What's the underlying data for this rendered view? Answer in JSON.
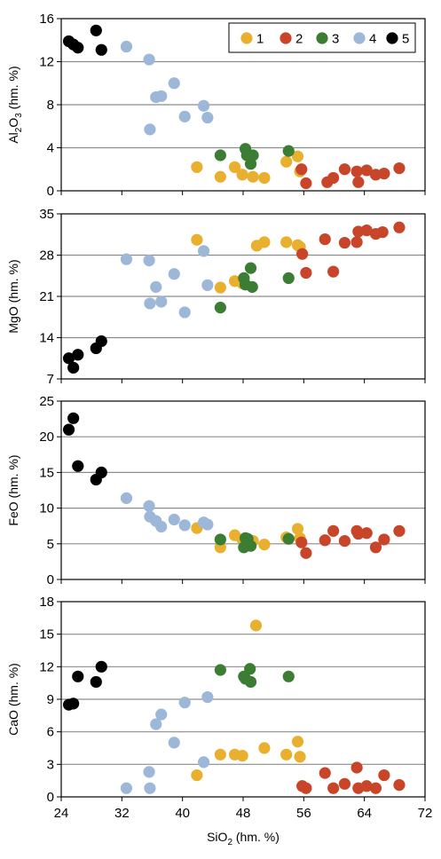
{
  "chart_data": {
    "type": "scatter",
    "legend": {
      "position": "top-right",
      "entries": [
        {
          "label": "1",
          "color": "#E8B02E"
        },
        {
          "label": "2",
          "color": "#C8452A"
        },
        {
          "label": "3",
          "color": "#3A7D33"
        },
        {
          "label": "4",
          "color": "#9DB7D8"
        },
        {
          "label": "5",
          "color": "#000000"
        }
      ]
    },
    "xaxis": {
      "label_pre": "SiO",
      "label_sub": "2",
      "label_post": " (hm. %)",
      "range": [
        24,
        72
      ],
      "ticks": [
        "24",
        "32",
        "40",
        "48",
        "56",
        "64",
        "72"
      ]
    },
    "panels": [
      {
        "ylabel_pre": "Al",
        "ylabel_sub1": "2",
        "ylabel_mid": "O",
        "ylabel_sub2": "3",
        "ylabel_post": " (hm. %)",
        "yrange": [
          0,
          16
        ],
        "yticks": [
          "0",
          "4",
          "8",
          "12",
          "16"
        ],
        "series": [
          {
            "name": "1",
            "points": [
              [
                41.9,
                2.2
              ],
              [
                45,
                1.3
              ],
              [
                46.9,
                2.2
              ],
              [
                47.9,
                1.5
              ],
              [
                49.3,
                1.3
              ],
              [
                50.8,
                1.2
              ],
              [
                53.7,
                2.7
              ],
              [
                55.2,
                3.2
              ],
              [
                55.5,
                1.8
              ]
            ]
          },
          {
            "name": "2",
            "points": [
              [
                55.7,
                2.0
              ],
              [
                56.3,
                0.7
              ],
              [
                59.1,
                0.8
              ],
              [
                59.9,
                1.2
              ],
              [
                61.4,
                2.0
              ],
              [
                63,
                1.8
              ],
              [
                63.2,
                0.8
              ],
              [
                64.3,
                1.9
              ],
              [
                65.5,
                1.5
              ],
              [
                66.6,
                1.6
              ],
              [
                68.6,
                2.1
              ]
            ]
          },
          {
            "name": "3",
            "points": [
              [
                45,
                3.3
              ],
              [
                48.3,
                3.9
              ],
              [
                48.5,
                3.3
              ],
              [
                49,
                2.5
              ],
              [
                49.3,
                3.3
              ],
              [
                54,
                3.7
              ]
            ]
          },
          {
            "name": "4",
            "points": [
              [
                32.6,
                13.4
              ],
              [
                35.6,
                12.2
              ],
              [
                35.7,
                5.7
              ],
              [
                36.5,
                8.7
              ],
              [
                37.2,
                8.8
              ],
              [
                38.9,
                10.0
              ],
              [
                40.3,
                6.9
              ],
              [
                42.8,
                7.9
              ],
              [
                43.3,
                6.8
              ]
            ]
          },
          {
            "name": "5",
            "points": [
              [
                25,
                13.9
              ],
              [
                25.6,
                13.6
              ],
              [
                26.2,
                13.3
              ],
              [
                28.6,
                14.9
              ],
              [
                29.3,
                13.1
              ]
            ]
          }
        ]
      },
      {
        "ylabel": "MgO (hm. %)",
        "yrange": [
          7,
          35
        ],
        "yticks": [
          "7",
          "14",
          "21",
          "28",
          "35"
        ],
        "series": [
          {
            "name": "1",
            "points": [
              [
                41.9,
                30.6
              ],
              [
                45,
                22.5
              ],
              [
                46.9,
                23.6
              ],
              [
                47.9,
                23.2
              ],
              [
                49.8,
                29.6
              ],
              [
                50.8,
                30.2
              ],
              [
                53.7,
                30.2
              ],
              [
                55.2,
                29.7
              ],
              [
                55.5,
                29.4
              ]
            ]
          },
          {
            "name": "2",
            "points": [
              [
                55.8,
                28.2
              ],
              [
                56.3,
                25.0
              ],
              [
                58.8,
                30.7
              ],
              [
                59.9,
                25.2
              ],
              [
                61.4,
                30.1
              ],
              [
                63,
                30.2
              ],
              [
                63.2,
                32.0
              ],
              [
                64.3,
                32.2
              ],
              [
                65.5,
                31.6
              ],
              [
                66.4,
                31.9
              ],
              [
                68.6,
                32.7
              ]
            ]
          },
          {
            "name": "3",
            "points": [
              [
                45,
                19.1
              ],
              [
                48.1,
                24.1
              ],
              [
                48.3,
                23.0
              ],
              [
                49,
                25.8
              ],
              [
                49.2,
                22.6
              ],
              [
                54,
                24.1
              ]
            ]
          },
          {
            "name": "4",
            "points": [
              [
                32.6,
                27.3
              ],
              [
                35.6,
                27.1
              ],
              [
                35.7,
                19.8
              ],
              [
                36.5,
                22.6
              ],
              [
                37.2,
                20.1
              ],
              [
                38.9,
                24.8
              ],
              [
                40.3,
                18.3
              ],
              [
                42.8,
                28.7
              ],
              [
                43.3,
                22.9
              ]
            ]
          },
          {
            "name": "5",
            "points": [
              [
                25,
                10.5
              ],
              [
                25.6,
                8.9
              ],
              [
                26.2,
                11.1
              ],
              [
                28.6,
                12.2
              ],
              [
                29.3,
                13.4
              ]
            ]
          }
        ]
      },
      {
        "ylabel": "FeO (hm. %)",
        "yrange": [
          0,
          25
        ],
        "yticks": [
          "0",
          "5",
          "10",
          "15",
          "20",
          "25"
        ],
        "series": [
          {
            "name": "1",
            "points": [
              [
                41.9,
                7.2
              ],
              [
                45,
                4.5
              ],
              [
                46.9,
                6.2
              ],
              [
                47.9,
                5.6
              ],
              [
                49.3,
                5.4
              ],
              [
                50.8,
                4.9
              ],
              [
                53.7,
                5.9
              ],
              [
                55.2,
                7.1
              ],
              [
                55.5,
                5.8
              ]
            ]
          },
          {
            "name": "2",
            "points": [
              [
                55.7,
                5.2
              ],
              [
                56.3,
                3.7
              ],
              [
                58.8,
                5.5
              ],
              [
                59.9,
                6.8
              ],
              [
                61.4,
                5.4
              ],
              [
                63,
                6.8
              ],
              [
                63.2,
                6.4
              ],
              [
                64.3,
                6.5
              ],
              [
                65.5,
                4.5
              ],
              [
                66.6,
                5.6
              ],
              [
                68.6,
                6.8
              ]
            ]
          },
          {
            "name": "3",
            "points": [
              [
                45,
                5.6
              ],
              [
                48.1,
                4.5
              ],
              [
                48.3,
                5.8
              ],
              [
                48.6,
                5.7
              ],
              [
                49,
                4.7
              ],
              [
                54,
                5.7
              ]
            ]
          },
          {
            "name": "4",
            "points": [
              [
                32.6,
                11.4
              ],
              [
                35.6,
                10.3
              ],
              [
                35.7,
                8.8
              ],
              [
                36.5,
                8.2
              ],
              [
                37.2,
                7.4
              ],
              [
                38.9,
                8.4
              ],
              [
                40.3,
                7.6
              ],
              [
                42.8,
                8.0
              ],
              [
                43.3,
                7.7
              ]
            ]
          },
          {
            "name": "5",
            "points": [
              [
                25,
                21.0
              ],
              [
                25.6,
                22.6
              ],
              [
                26.2,
                15.9
              ],
              [
                28.6,
                14.0
              ],
              [
                29.3,
                15.0
              ]
            ]
          }
        ]
      },
      {
        "ylabel": "CaO (hm. %)",
        "yrange": [
          0,
          18
        ],
        "yticks": [
          "0",
          "3",
          "6",
          "9",
          "12",
          "15",
          "18"
        ],
        "series": [
          {
            "name": "1",
            "points": [
              [
                41.9,
                2.0
              ],
              [
                45,
                3.9
              ],
              [
                46.9,
                3.9
              ],
              [
                47.9,
                3.8
              ],
              [
                49.7,
                15.8
              ],
              [
                50.8,
                4.5
              ],
              [
                53.7,
                3.9
              ],
              [
                55.2,
                5.1
              ],
              [
                55.5,
                3.7
              ]
            ]
          },
          {
            "name": "2",
            "points": [
              [
                55.8,
                1.0
              ],
              [
                56.3,
                0.8
              ],
              [
                58.8,
                2.2
              ],
              [
                59.9,
                0.8
              ],
              [
                61.4,
                1.2
              ],
              [
                63,
                2.7
              ],
              [
                63.2,
                0.8
              ],
              [
                64.3,
                1.0
              ],
              [
                65.5,
                0.8
              ],
              [
                66.6,
                2.0
              ],
              [
                68.6,
                1.1
              ]
            ]
          },
          {
            "name": "3",
            "points": [
              [
                45,
                11.7
              ],
              [
                48.1,
                11.1
              ],
              [
                48.3,
                10.9
              ],
              [
                48.9,
                11.8
              ],
              [
                49,
                10.6
              ],
              [
                54,
                11.1
              ]
            ]
          },
          {
            "name": "4",
            "points": [
              [
                32.6,
                0.8
              ],
              [
                35.6,
                2.3
              ],
              [
                35.7,
                0.8
              ],
              [
                36.5,
                6.7
              ],
              [
                37.2,
                7.6
              ],
              [
                38.9,
                5.0
              ],
              [
                40.3,
                8.7
              ],
              [
                42.8,
                3.2
              ],
              [
                43.3,
                9.2
              ]
            ]
          },
          {
            "name": "5",
            "points": [
              [
                25,
                8.5
              ],
              [
                25.6,
                8.6
              ],
              [
                26.2,
                11.1
              ],
              [
                28.6,
                10.6
              ],
              [
                29.3,
                12.0
              ]
            ]
          }
        ]
      }
    ]
  }
}
